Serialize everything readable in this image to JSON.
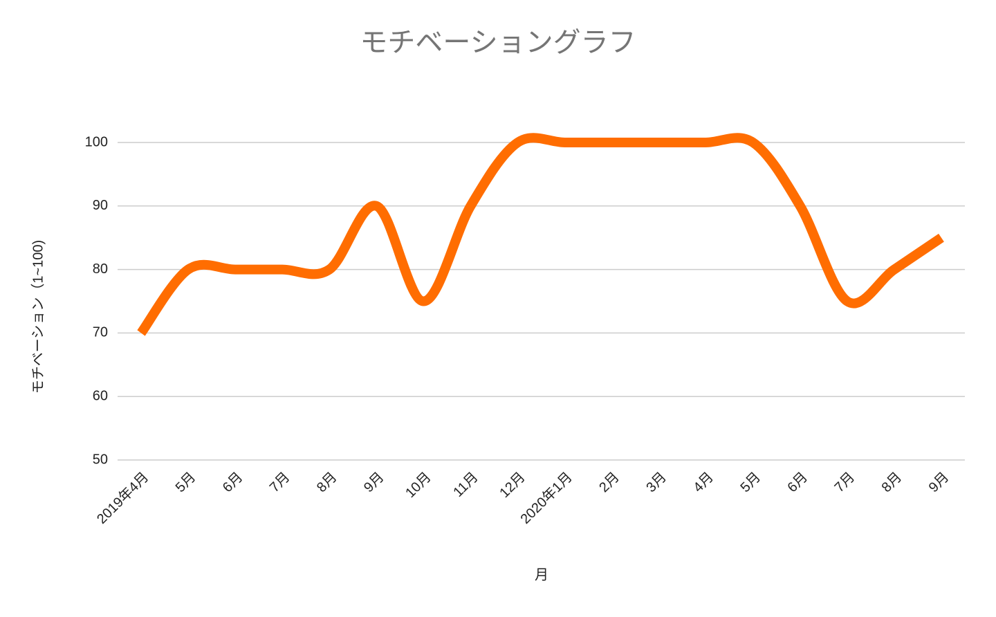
{
  "chart_data": {
    "type": "line",
    "title": "モチベーショングラフ",
    "x_label": "月",
    "y_label": "モチベーション（1~100)",
    "categories": [
      "2019年4月",
      "5月",
      "6月",
      "7月",
      "8月",
      "9月",
      "10月",
      "11月",
      "12月",
      "2020年1月",
      "2月",
      "3月",
      "4月",
      "5月",
      "6月",
      "7月",
      "8月",
      "9月"
    ],
    "series": [
      {
        "name": "モチベーション",
        "color": "#ff6d01",
        "values": [
          70,
          80,
          80,
          80,
          80,
          90,
          75,
          90,
          100,
          100,
          100,
          100,
          100,
          100,
          90,
          75,
          80,
          85
        ]
      }
    ],
    "ylim": [
      50,
      100
    ],
    "yticks": [
      50,
      60,
      70,
      80,
      90,
      100
    ],
    "grid": true,
    "smooth": true
  }
}
